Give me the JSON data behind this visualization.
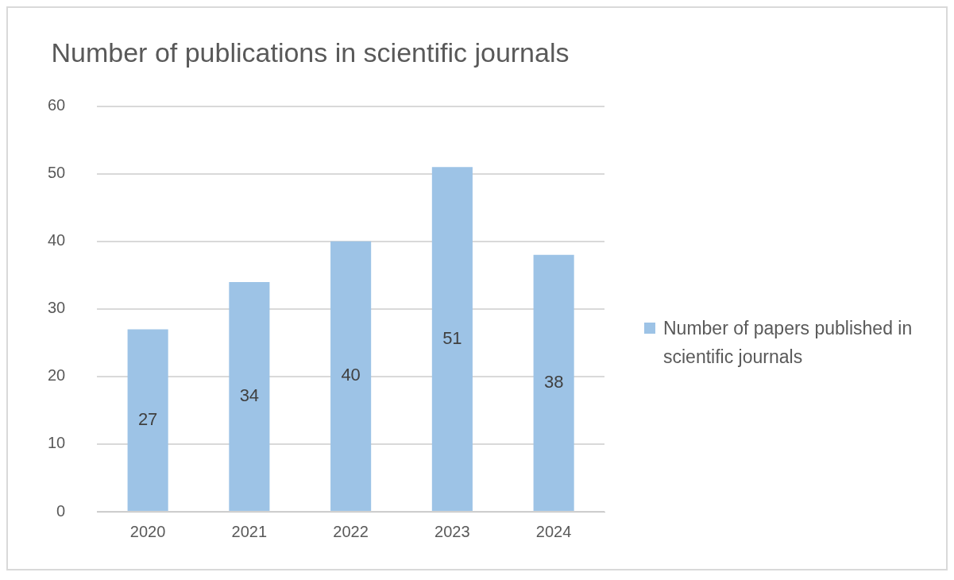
{
  "chart_data": {
    "type": "bar",
    "title": "Number of publications in scientific journals",
    "categories": [
      "2020",
      "2021",
      "2022",
      "2023",
      "2024"
    ],
    "series": [
      {
        "name": "Number of papers published in scientific journals",
        "color": "#9dc3e6",
        "values": [
          27,
          34,
          40,
          51,
          38
        ]
      }
    ],
    "ylim": [
      0,
      60
    ],
    "yticks": [
      0,
      10,
      20,
      30,
      40,
      50,
      60
    ],
    "grid": "y",
    "legend": "right",
    "data_labels": true
  }
}
